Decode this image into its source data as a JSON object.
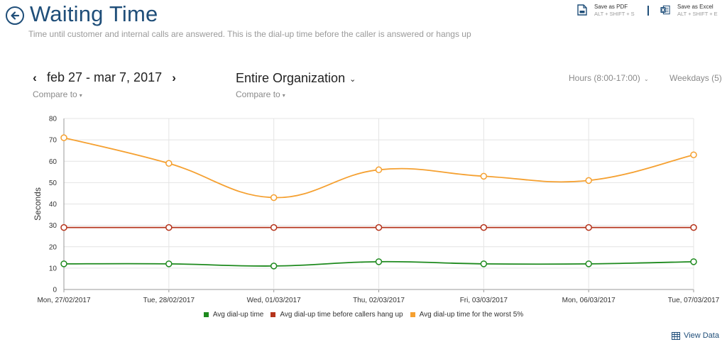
{
  "header": {
    "title": "Waiting Time",
    "subtitle": "Time until customer and internal calls are answered. This is the dial-up time before the caller is answered or hangs up"
  },
  "exports": {
    "pdf": {
      "label": "Save as PDF",
      "shortcut": "ALT + SHIFT + S"
    },
    "excel": {
      "label": "Save as Excel",
      "shortcut": "ALT + SHIFT + E"
    }
  },
  "filters": {
    "prev_arrow": "‹",
    "next_arrow": "›",
    "date_range": "feb 27 - mar 7, 2017",
    "compare_label": "Compare to",
    "organization": "Entire Organization",
    "hours": "Hours (8:00-17:00)",
    "weekdays": "Weekdays (5)"
  },
  "chart_data": {
    "type": "line",
    "ylabel": "Seconds",
    "ylim": [
      0,
      80
    ],
    "yticks": [
      0,
      10,
      20,
      30,
      40,
      50,
      60,
      70,
      80
    ],
    "categories": [
      "Mon, 27/02/2017",
      "Tue, 28/02/2017",
      "Wed, 01/03/2017",
      "Thu, 02/03/2017",
      "Fri, 03/03/2017",
      "Mon, 06/03/2017",
      "Tue, 07/03/2017"
    ],
    "series": [
      {
        "name": "Avg dial-up time",
        "color": "#1e8a1e",
        "smooth": true,
        "values": [
          12,
          12,
          11,
          13,
          12,
          12,
          13
        ]
      },
      {
        "name": "Avg dial-up time before callers hang up",
        "color": "#b5341c",
        "smooth": false,
        "values": [
          29,
          29,
          29,
          29,
          29,
          29,
          29
        ]
      },
      {
        "name": "Avg dial-up time for the worst 5%",
        "color": "#f5a030",
        "smooth": true,
        "values": [
          71,
          59,
          43,
          56,
          53,
          51,
          63
        ]
      }
    ],
    "grid": true,
    "legend_position": "bottom"
  },
  "footer": {
    "view_data": "View Data"
  }
}
